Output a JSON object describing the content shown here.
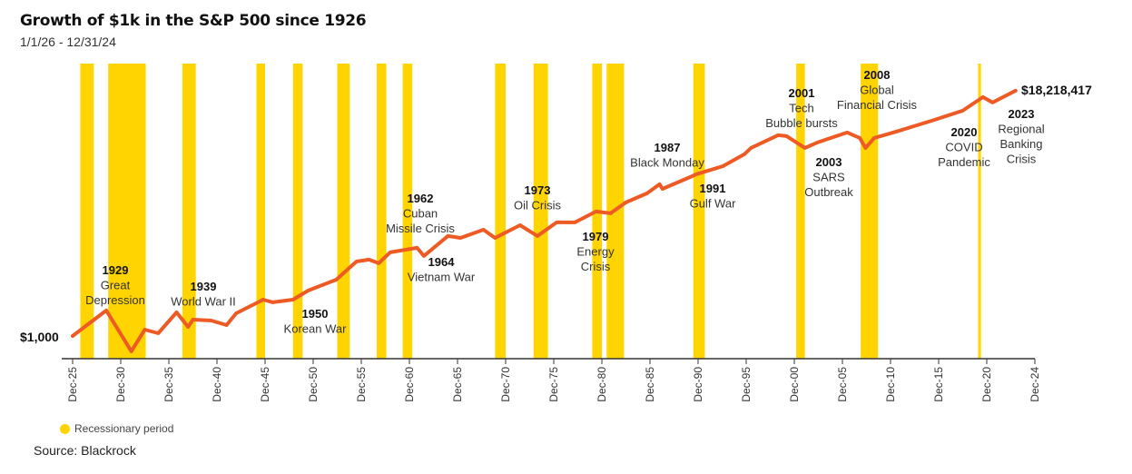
{
  "chart_data": {
    "type": "line",
    "title": "Growth of $1k in the S&P 500 since 1926",
    "subtitle": "1/1/26 - 12/31/24",
    "yscale": "log",
    "ylim": [
      403,
      53700000
    ],
    "xlim": [
      1925.8,
      2026.5
    ],
    "start_label": "$1,000",
    "end_label": "$18,218,417",
    "x_ticks": [
      {
        "year": 1926,
        "label": "Dec-25"
      },
      {
        "year": 1931,
        "label": "Dec-30"
      },
      {
        "year": 1936,
        "label": "Dec-35"
      },
      {
        "year": 1941,
        "label": "Dec-40"
      },
      {
        "year": 1946,
        "label": "Dec-45"
      },
      {
        "year": 1951,
        "label": "Dec-50"
      },
      {
        "year": 1956,
        "label": "Dec-55"
      },
      {
        "year": 1961,
        "label": "Dec-60"
      },
      {
        "year": 1966,
        "label": "Dec-65"
      },
      {
        "year": 1971,
        "label": "Dec-70"
      },
      {
        "year": 1976,
        "label": "Dec-75"
      },
      {
        "year": 1981,
        "label": "Dec-80"
      },
      {
        "year": 1986,
        "label": "Dec-85"
      },
      {
        "year": 1991,
        "label": "Dec-90"
      },
      {
        "year": 1996,
        "label": "Dec-95"
      },
      {
        "year": 2001,
        "label": "Dec-00"
      },
      {
        "year": 2006,
        "label": "Dec-05"
      },
      {
        "year": 2011,
        "label": "Dec-10"
      },
      {
        "year": 2016,
        "label": "Dec-15"
      },
      {
        "year": 2021,
        "label": "Dec-20"
      },
      {
        "year": 2026,
        "label": "Dec-24"
      }
    ],
    "series": [
      {
        "name": "Growth of $1k",
        "color": "#EE5A24",
        "x": [
          1926,
          1929.5,
          1932.1,
          1933.5,
          1934.9,
          1936.8,
          1938.0,
          1938.5,
          1940.4,
          1942.0,
          1943.0,
          1945.8,
          1946.8,
          1948.9,
          1950.5,
          1953.4,
          1955.5,
          1956.8,
          1957.8,
          1959.0,
          1961.8,
          1962.5,
          1965.0,
          1966.3,
          1968.7,
          1969.9,
          1972.5,
          1974.3,
          1976.3,
          1978.2,
          1980.4,
          1981.9,
          1983.5,
          1985.7,
          1987.0,
          1987.3,
          1990.2,
          1990.8,
          1993.6,
          1995.8,
          1996.5,
          1999.3,
          2000.2,
          2002.1,
          2003.4,
          2006.5,
          2007.8,
          2008.4,
          2009.3,
          2011.6,
          2015.3,
          2018.5,
          2020.6,
          2021.6,
          2024.0
        ],
        "values": [
          1000,
          2766,
          540,
          1289,
          1115,
          2570,
          1438,
          1922,
          1854,
          1546,
          2478,
          4274,
          3835,
          4274,
          6150,
          9504,
          19630,
          21130,
          18280,
          28260,
          33880,
          24450,
          54330,
          50470,
          70000,
          50470,
          83950,
          54330,
          93750,
          93750,
          144900,
          134600,
          208400,
          299500,
          430300,
          358700,
          575400,
          642100,
          891000,
          1429000,
          1843000,
          3062000,
          2951000,
          1843000,
          2291000,
          3412000,
          2742000,
          1843000,
          2742000,
          3540000,
          5470000,
          8160000,
          14060000,
          11320000,
          18218417
        ]
      }
    ],
    "recessions": {
      "label": "Recessionary period",
      "color": "#FFD400",
      "periods": [
        [
          1926.8,
          1928.2
        ],
        [
          1929.7,
          1933.6
        ],
        [
          1937.4,
          1938.8
        ],
        [
          1945.1,
          1946.0
        ],
        [
          1948.9,
          1949.9
        ],
        [
          1953.5,
          1954.8
        ],
        [
          1957.6,
          1958.6
        ],
        [
          1960.3,
          1961.3
        ],
        [
          1969.9,
          1971.0
        ],
        [
          1973.9,
          1975.4
        ],
        [
          1980.0,
          1981.0
        ],
        [
          1981.5,
          1983.3
        ],
        [
          1990.5,
          1991.7
        ],
        [
          2001.2,
          2002.1
        ],
        [
          2007.9,
          2009.7
        ],
        [
          2020.1,
          2020.4
        ]
      ]
    },
    "annotations": [
      {
        "year_label": "1929",
        "lines": [
          "Great",
          "Depression"
        ]
      },
      {
        "year_label": "1939",
        "lines": [
          "World War II"
        ]
      },
      {
        "year_label": "1950",
        "lines": [
          "Korean War"
        ]
      },
      {
        "year_label": "1962",
        "lines": [
          "Cuban",
          "Missile Crisis"
        ]
      },
      {
        "year_label": "1964",
        "lines": [
          "Vietnam War"
        ]
      },
      {
        "year_label": "1973",
        "lines": [
          "Oil Crisis"
        ]
      },
      {
        "year_label": "1979",
        "lines": [
          "Energy",
          "Crisis"
        ]
      },
      {
        "year_label": "1987",
        "lines": [
          "Black Monday"
        ]
      },
      {
        "year_label": "1991",
        "lines": [
          "Gulf War"
        ]
      },
      {
        "year_label": "2001",
        "lines": [
          "Tech",
          "Bubble bursts"
        ]
      },
      {
        "year_label": "2003",
        "lines": [
          "SARS",
          "Outbreak"
        ]
      },
      {
        "year_label": "2008",
        "lines": [
          "Global",
          "Financial Crisis"
        ]
      },
      {
        "year_label": "2020",
        "lines": [
          "COVID",
          "Pandemic"
        ]
      },
      {
        "year_label": "2023",
        "lines": [
          "Regional",
          "Banking",
          "Crisis"
        ]
      }
    ]
  },
  "source": "Source: Blackrock"
}
